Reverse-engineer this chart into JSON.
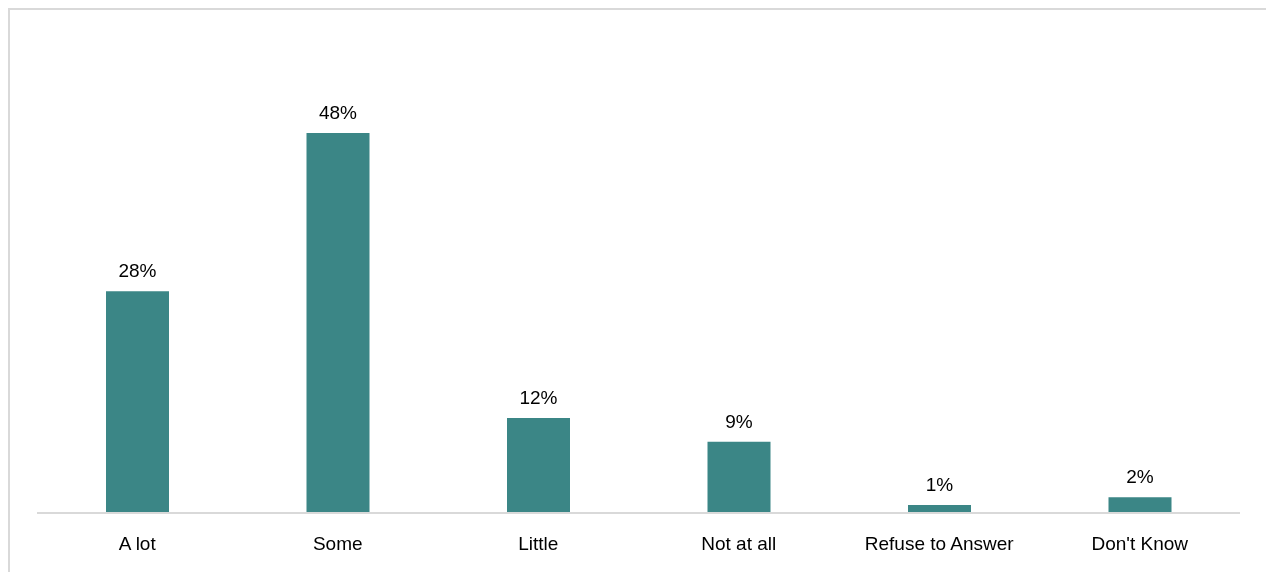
{
  "chart_data": {
    "type": "bar",
    "categories": [
      "A lot",
      "Some",
      "Little",
      "Not at all",
      "Refuse to Answer",
      "Don't Know"
    ],
    "values": [
      28,
      48,
      12,
      9,
      1,
      2
    ],
    "color": "#3b8686",
    "value_labels": [
      "28%",
      "48%",
      "12%",
      "9%",
      "1%",
      "2%"
    ],
    "tick_labels": "x"
  }
}
